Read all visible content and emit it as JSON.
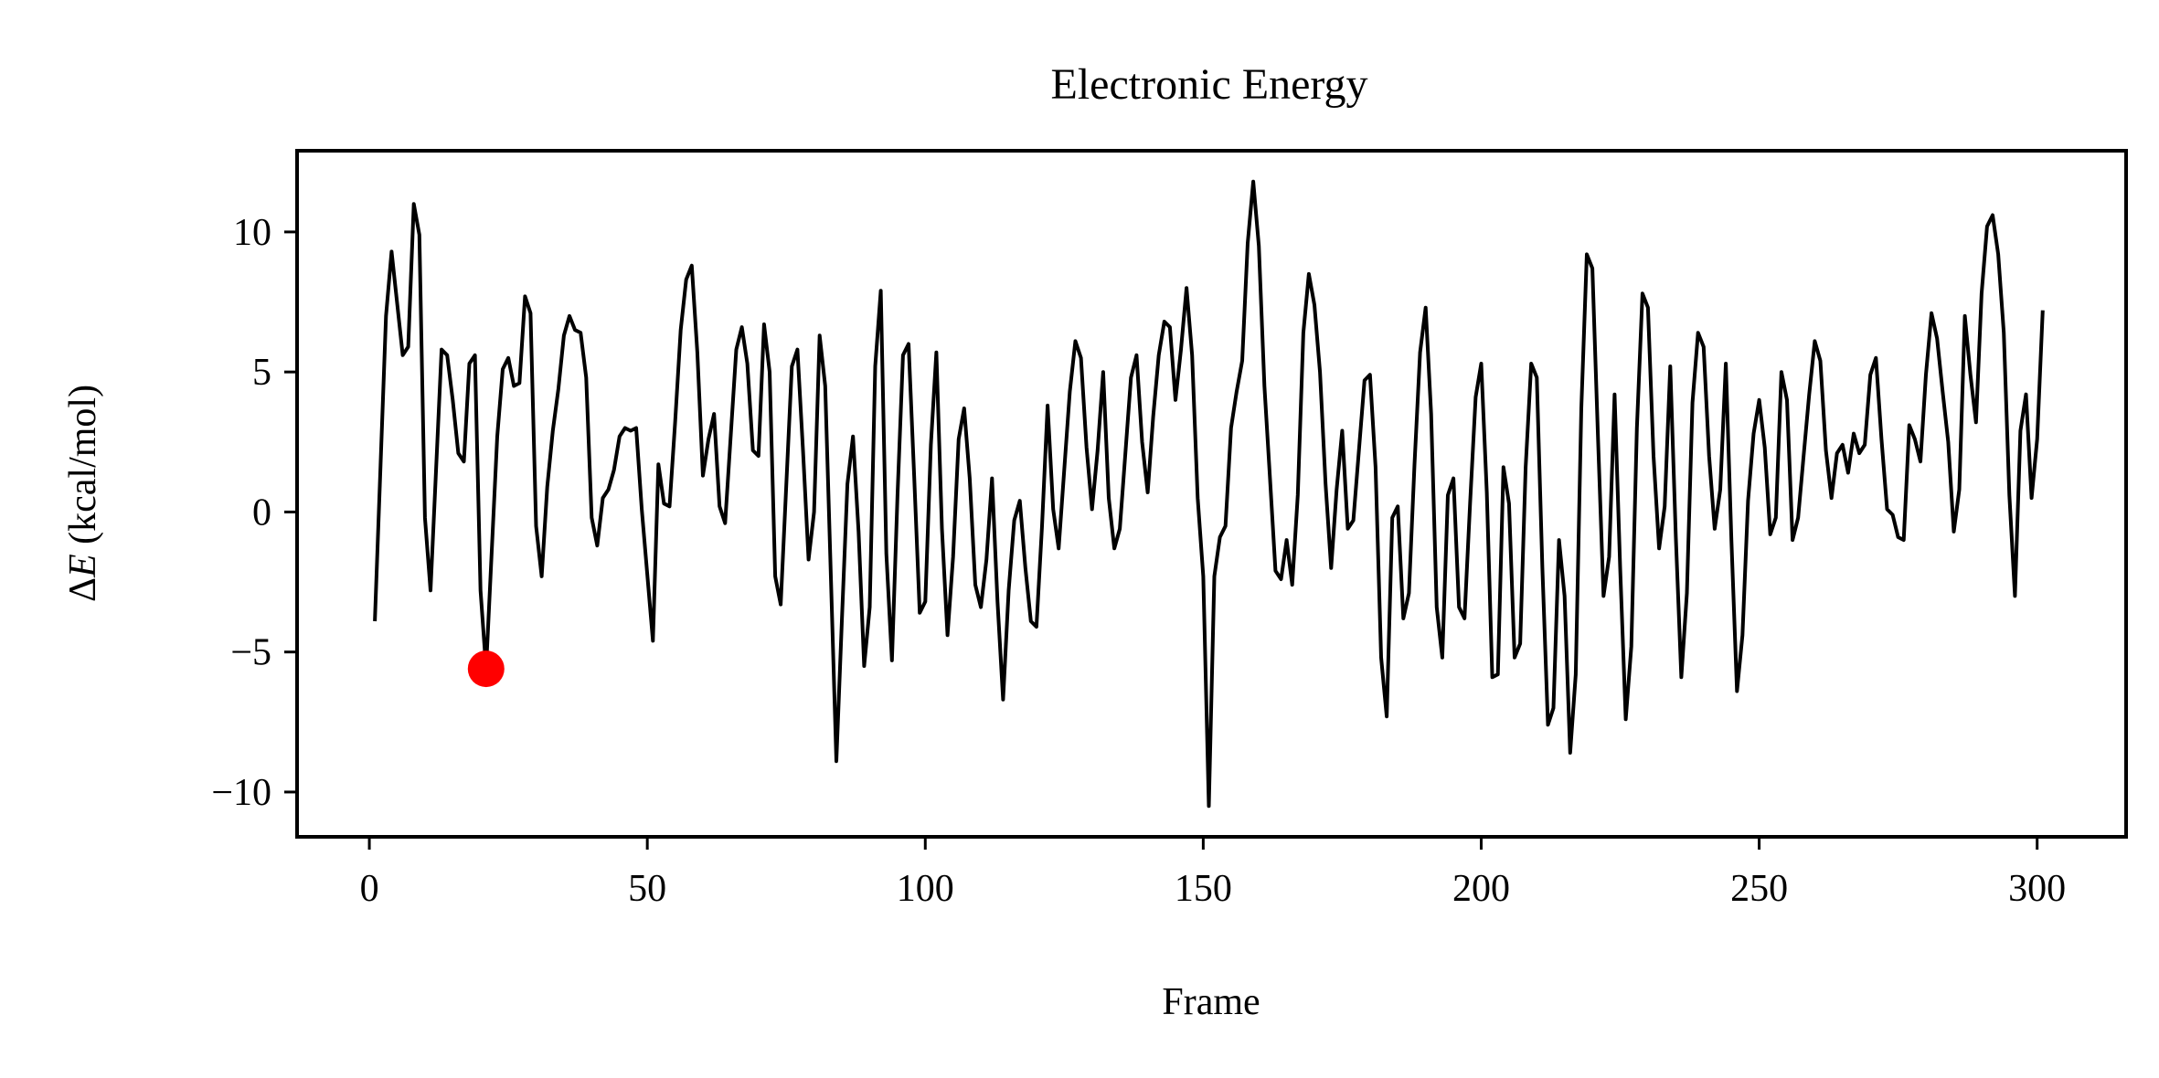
{
  "chart_data": {
    "type": "line",
    "title": "Electronic Energy",
    "xlabel": "Frame",
    "ylabel_delta": "Δ",
    "ylabel_symbol": "E",
    "ylabel_units": " (kcal/mol)",
    "xlim": [
      -13,
      316
    ],
    "ylim": [
      -11.6,
      12.9
    ],
    "xticks": [
      0,
      50,
      100,
      150,
      200,
      250,
      300
    ],
    "xtick_labels": [
      "0",
      "50",
      "100",
      "150",
      "200",
      "250",
      "300"
    ],
    "yticks": [
      10,
      5,
      0,
      -5,
      -10
    ],
    "ytick_labels": [
      "10",
      "5",
      "0",
      "−5",
      "−10"
    ],
    "grid": false,
    "line_color": "#000000",
    "marker_color": "#ff0000",
    "highlight": {
      "x": 21,
      "y": -5.6
    },
    "series": [
      {
        "x": [
          1,
          3,
          4,
          6,
          7,
          8,
          9,
          10,
          11,
          13,
          14,
          15,
          16,
          17,
          18,
          19,
          20,
          21,
          23,
          24,
          25,
          26,
          27,
          28,
          29,
          30,
          31,
          32,
          33,
          34,
          35,
          36,
          37,
          38,
          39,
          40,
          41,
          42,
          43,
          44,
          45,
          46,
          47,
          48,
          49,
          51,
          52,
          53,
          54,
          55,
          56,
          57,
          58,
          59,
          60,
          61,
          62,
          63,
          64,
          66,
          67,
          68,
          69,
          70,
          71,
          72,
          73,
          74,
          76,
          77,
          78,
          79,
          80,
          81,
          82,
          84,
          85,
          86,
          87,
          88,
          89,
          90,
          91,
          92,
          93,
          94,
          95,
          96,
          97,
          98,
          99,
          100,
          101,
          102,
          103,
          104,
          105,
          106,
          107,
          108,
          109,
          110,
          111,
          112,
          113,
          114,
          115,
          116,
          117,
          118,
          119,
          120,
          121,
          122,
          123,
          124,
          125,
          126,
          127,
          128,
          129,
          130,
          131,
          132,
          133,
          134,
          135,
          136,
          137,
          138,
          139,
          140,
          141,
          142,
          143,
          144,
          145,
          146,
          147,
          148,
          149,
          150,
          151,
          152,
          153,
          154,
          155,
          156,
          157,
          158,
          159,
          160,
          161,
          162,
          163,
          164,
          165,
          166,
          167,
          168,
          169,
          170,
          171,
          172,
          173,
          174,
          175,
          176,
          177,
          178,
          179,
          180,
          181,
          182,
          183,
          184,
          185,
          186,
          187,
          188,
          189,
          190,
          191,
          192,
          193,
          194,
          195,
          196,
          197,
          198,
          199,
          200,
          201,
          202,
          203,
          204,
          205,
          206,
          207,
          208,
          209,
          210,
          211,
          212,
          213,
          214,
          215,
          216,
          217,
          218,
          219,
          220,
          221,
          222,
          223,
          224,
          225,
          226,
          227,
          228,
          229,
          230,
          231,
          232,
          233,
          234,
          235,
          236,
          237,
          238,
          239,
          240,
          241,
          242,
          243,
          244,
          245,
          246,
          247,
          248,
          249,
          250,
          251,
          252,
          253,
          254,
          255,
          256,
          257,
          258,
          259,
          260,
          261,
          262,
          263,
          264,
          265,
          266,
          267,
          268,
          269,
          270,
          271,
          272,
          273,
          274,
          275,
          276,
          277,
          278,
          279,
          280,
          281,
          282,
          283,
          284,
          285,
          286,
          287,
          288,
          289,
          290,
          291,
          292,
          293,
          294,
          295,
          296,
          297,
          298,
          299,
          300,
          301
        ],
        "y": [
          -3.9,
          7.0,
          9.3,
          5.6,
          5.9,
          11.0,
          9.9,
          -0.2,
          -2.8,
          5.8,
          5.6,
          4.0,
          2.1,
          1.8,
          5.3,
          5.6,
          -2.8,
          -5.6,
          2.7,
          5.1,
          5.5,
          4.5,
          4.6,
          7.7,
          7.1,
          -0.5,
          -2.3,
          0.9,
          2.9,
          4.4,
          6.3,
          7.0,
          6.5,
          6.4,
          4.8,
          -0.2,
          -1.2,
          0.5,
          0.8,
          1.5,
          2.7,
          3.0,
          2.9,
          3.0,
          0.1,
          -4.6,
          1.7,
          0.3,
          0.2,
          3.2,
          6.5,
          8.3,
          8.8,
          5.7,
          1.3,
          2.6,
          3.5,
          0.2,
          -0.4,
          5.8,
          6.6,
          5.3,
          2.2,
          2.0,
          6.7,
          5.0,
          -2.3,
          -3.3,
          5.2,
          5.8,
          2.2,
          -1.7,
          0.0,
          6.3,
          4.5,
          -8.9,
          -3.9,
          1.0,
          2.7,
          -0.7,
          -5.5,
          -3.4,
          5.2,
          7.9,
          -1.5,
          -5.3,
          0.6,
          5.6,
          6.0,
          1.3,
          -3.6,
          -3.2,
          2.4,
          5.7,
          -0.6,
          -4.4,
          -1.6,
          2.6,
          3.7,
          1.2,
          -2.6,
          -3.4,
          -1.7,
          1.2,
          -3.2,
          -6.7,
          -2.8,
          -0.3,
          0.4,
          -2.0,
          -3.9,
          -4.1,
          -0.5,
          3.8,
          0.1,
          -1.3,
          1.5,
          4.3,
          6.1,
          5.5,
          2.3,
          0.1,
          2.2,
          5.0,
          0.5,
          -1.3,
          -0.6,
          2.1,
          4.8,
          5.6,
          2.5,
          0.7,
          3.4,
          5.6,
          6.8,
          6.6,
          4.0,
          5.8,
          8.0,
          5.6,
          0.5,
          -2.3,
          -10.5,
          -2.3,
          -0.9,
          -0.5,
          3.0,
          4.3,
          5.4,
          9.6,
          11.8,
          9.5,
          4.5,
          1.2,
          -2.1,
          -2.4,
          -1.0,
          -2.6,
          0.6,
          6.4,
          8.5,
          7.4,
          5.0,
          1.0,
          -2.0,
          0.8,
          2.9,
          -0.6,
          -0.3,
          2.2,
          4.7,
          4.9,
          1.6,
          -5.2,
          -7.3,
          -0.2,
          0.2,
          -3.8,
          -2.9,
          1.7,
          5.7,
          7.3,
          3.5,
          -3.4,
          -5.2,
          0.6,
          1.2,
          -3.4,
          -3.8,
          0.3,
          4.1,
          5.3,
          0.7,
          -5.9,
          -5.8,
          1.6,
          0.3,
          -5.2,
          -4.7,
          1.6,
          5.3,
          4.8,
          -2.0,
          -7.6,
          -7.0,
          -1.0,
          -3.0,
          -8.6,
          -5.8,
          3.7,
          9.2,
          8.7,
          2.7,
          -3.0,
          -1.6,
          4.2,
          -2.0,
          -7.4,
          -4.8,
          3.0,
          7.8,
          7.3,
          2.0,
          -1.3,
          0.2,
          5.2,
          -0.9,
          -5.9,
          -2.9,
          3.9,
          6.4,
          5.9,
          2.0,
          -0.6,
          0.8,
          5.3,
          -1.0,
          -6.4,
          -4.4,
          0.4,
          2.8,
          4.0,
          2.3,
          -0.8,
          -0.2,
          5.0,
          4.0,
          -1.0,
          -0.2,
          2.0,
          4.2,
          6.1,
          5.4,
          2.2,
          0.5,
          2.1,
          2.4,
          1.4,
          2.8,
          2.1,
          2.4,
          4.9,
          5.5,
          2.6,
          0.1,
          -0.1,
          -0.9,
          -1.0,
          3.1,
          2.6,
          1.8,
          4.9,
          7.1,
          6.2,
          4.3,
          2.5,
          -0.7,
          0.8,
          7.0,
          4.9,
          3.2,
          7.8,
          10.2,
          10.6,
          9.2,
          6.4,
          0.6,
          -3.0,
          2.9,
          4.2,
          0.5,
          2.6,
          7.2
        ]
      }
    ]
  }
}
